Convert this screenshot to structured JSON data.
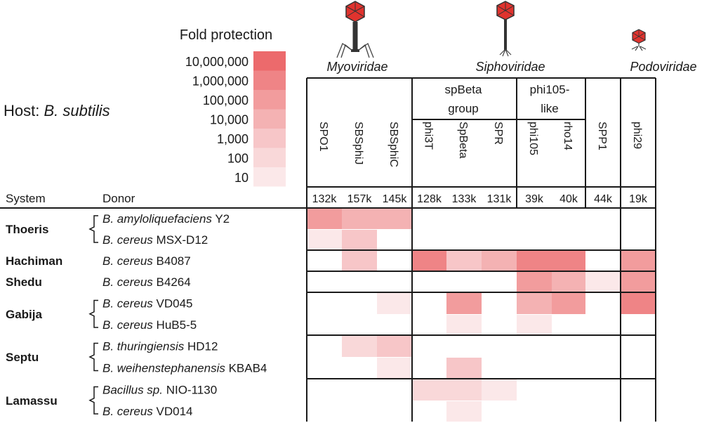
{
  "host": {
    "label": "Host: ",
    "species": "B. subtilis"
  },
  "legend": {
    "title": "Fold protection",
    "levels": [
      "10,000,000",
      "1,000,000",
      "100,000",
      "10,000",
      "1,000",
      "100",
      "10"
    ],
    "colors": [
      "#ec6a6c",
      "#ef8486",
      "#f29c9d",
      "#f4b2b3",
      "#f7c6c8",
      "#f9d8d9",
      "#fbe8e9"
    ]
  },
  "families": [
    {
      "name": "Myoviridae",
      "icon": "myovirus-phage-icon"
    },
    {
      "name": "Siphoviridae",
      "icon": "siphovirus-phage-icon"
    },
    {
      "name": "Podoviridae",
      "icon": "podovirus-phage-icon"
    }
  ],
  "groups": [
    {
      "name_lines": [
        "spBeta",
        "group"
      ]
    },
    {
      "name_lines": [
        "phi105-",
        "like"
      ]
    }
  ],
  "headers": {
    "system": "System",
    "donor": "Donor"
  },
  "chart_data": {
    "type": "heatmap",
    "value_meaning": "fold protection (log10)",
    "phages": [
      "SPO1",
      "SBSphiJ",
      "SBSphiC",
      "phi3T",
      "SpBeta",
      "SPR",
      "phi105",
      "rho14",
      "SPP1",
      "phi29"
    ],
    "genome_sizes": [
      "132k",
      "157k",
      "145k",
      "128k",
      "133k",
      "131k",
      "39k",
      "40k",
      "44k",
      "19k"
    ],
    "rows": [
      {
        "system": "Thoeris",
        "species": "B. amyloliquefaciens",
        "strain": "Y2",
        "species_italic": true,
        "values": [
          5,
          4,
          4,
          0,
          0,
          0,
          0,
          0,
          0,
          0
        ]
      },
      {
        "system": "",
        "species": "B. cereus",
        "strain": "MSX-D12",
        "species_italic": true,
        "values": [
          1,
          3,
          0,
          0,
          0,
          0,
          0,
          0,
          0,
          0
        ]
      },
      {
        "system": "Hachiman",
        "species": "B. cereus",
        "strain": "B4087",
        "species_italic": true,
        "values": [
          0,
          3,
          0,
          6,
          3,
          4,
          6,
          6,
          0,
          5
        ]
      },
      {
        "system": "Shedu",
        "species": "B. cereus",
        "strain": "B4264",
        "species_italic": true,
        "values": [
          0,
          0,
          0,
          0,
          0,
          0,
          5,
          4,
          1,
          5
        ]
      },
      {
        "system": "Gabija",
        "species": "B. cereus",
        "strain": "VD045",
        "species_italic": true,
        "values": [
          0,
          0,
          1,
          0,
          5,
          0,
          4,
          5,
          0,
          6
        ]
      },
      {
        "system": "",
        "species": "B. cereus",
        "strain": "HuB5-5",
        "species_italic": true,
        "values": [
          0,
          0,
          0,
          0,
          1,
          0,
          1,
          0,
          0,
          0
        ]
      },
      {
        "system": "Septu",
        "species": "B. thuringiensis",
        "strain": "HD12",
        "species_italic": true,
        "values": [
          0,
          2,
          3,
          0,
          0,
          0,
          0,
          0,
          0,
          0
        ]
      },
      {
        "system": "",
        "species": "B. weihenstephanensis",
        "strain": "KBAB4",
        "species_italic": true,
        "values": [
          0,
          0,
          1,
          0,
          3,
          0,
          0,
          0,
          0,
          0
        ]
      },
      {
        "system": "Lamassu",
        "species": "Bacillus sp.",
        "strain": "NIO-1130",
        "species_italic": true,
        "values": [
          0,
          0,
          0,
          2,
          2,
          1,
          0,
          0,
          0,
          0
        ]
      },
      {
        "system": "",
        "species": "B. cereus",
        "strain": "VD014",
        "species_italic": true,
        "values": [
          0,
          0,
          0,
          0,
          1,
          0,
          0,
          0,
          0,
          0
        ]
      }
    ]
  }
}
